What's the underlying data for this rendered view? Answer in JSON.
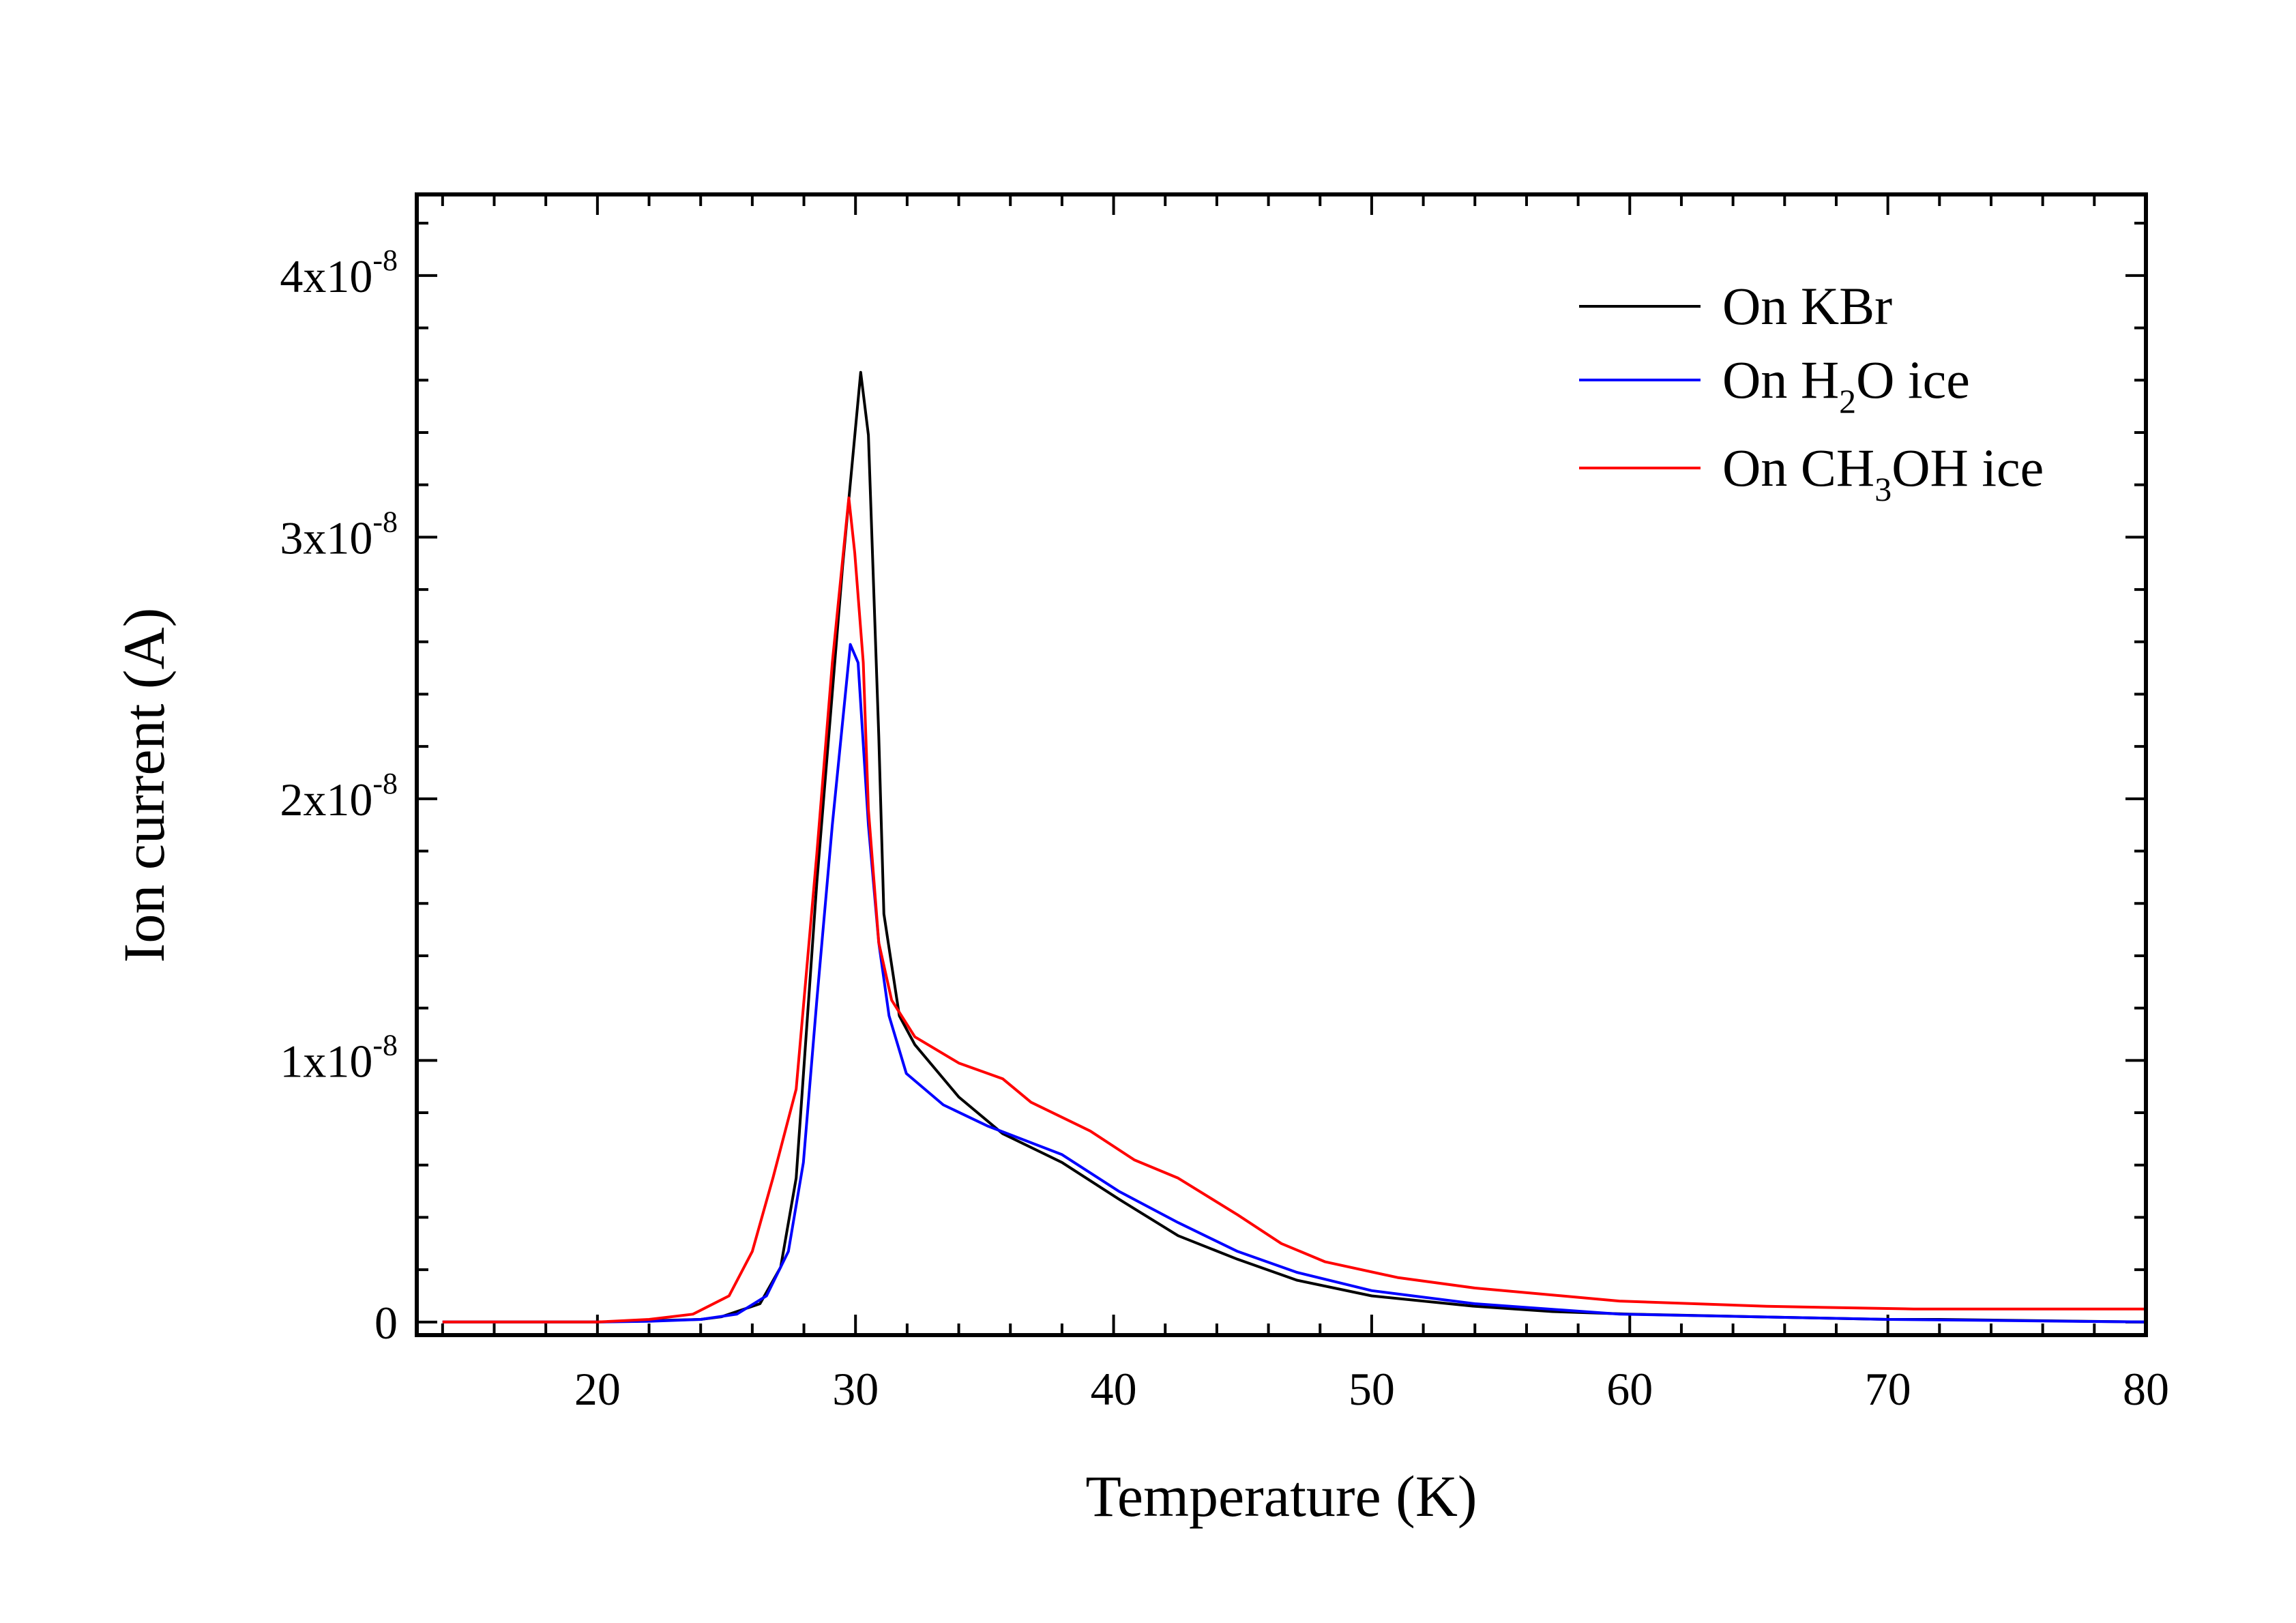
{
  "chart_data": {
    "type": "line",
    "title": "",
    "xlabel": "Temperature (K)",
    "ylabel": "Ion current (A)",
    "xlim": [
      13,
      80
    ],
    "ylim": [
      -5e-10,
      4.31e-08
    ],
    "xticks": [
      20,
      30,
      40,
      50,
      60,
      70,
      80
    ],
    "yticks": [
      {
        "value": 0,
        "label": "0"
      },
      {
        "value": 1e-08,
        "label": "1x10",
        "exp": "-8"
      },
      {
        "value": 2e-08,
        "label": "2x10",
        "exp": "-8"
      },
      {
        "value": 3e-08,
        "label": "3x10",
        "exp": "-8"
      },
      {
        "value": 4e-08,
        "label": "4x10",
        "exp": "-8"
      }
    ],
    "grid": false,
    "legend": "top-right",
    "series": [
      {
        "name": "On KBr",
        "color": "#000000",
        "x": [
          14,
          20,
          22,
          24,
          24.8,
          26.3,
          27.1,
          27.7,
          28.5,
          29.5,
          30.2,
          30.5,
          30.9,
          31.1,
          31.7,
          32.3,
          34,
          35.7,
          38,
          40.2,
          42.5,
          44.8,
          47.1,
          50,
          54,
          57,
          60,
          65,
          70,
          72,
          80
        ],
        "y": [
          0,
          0,
          5e-11,
          1e-10,
          2e-10,
          7e-10,
          2.1e-09,
          5.5e-09,
          1.68e-08,
          2.89e-08,
          3.63e-08,
          3.39e-08,
          2.24e-08,
          1.56e-08,
          1.17e-08,
          1.06e-08,
          8.6e-09,
          7.2e-09,
          6.1e-09,
          4.7e-09,
          3.3e-09,
          2.4e-09,
          1.6e-09,
          1e-09,
          6e-10,
          4e-10,
          3e-10,
          2e-10,
          1e-10,
          1e-10,
          0
        ]
      },
      {
        "name": "On H2O ice",
        "color": "#0000ff",
        "x": [
          14,
          20,
          22,
          24,
          25.4,
          26.55,
          27.4,
          27.98,
          28.5,
          29.1,
          29.8,
          30.1,
          30.5,
          30.9,
          31.3,
          31.97,
          33.4,
          35.1,
          38,
          40.2,
          42.5,
          44.8,
          47.1,
          50,
          54,
          59.6,
          65,
          70,
          80
        ],
        "y": [
          0,
          0,
          3e-11,
          1e-10,
          3e-10,
          1e-09,
          2.7e-09,
          6.1e-09,
          1.23e-08,
          1.9e-08,
          2.59e-08,
          2.52e-08,
          1.9e-08,
          1.45e-08,
          1.17e-08,
          9.5e-09,
          8.3e-09,
          7.5e-09,
          6.4e-09,
          5e-09,
          3.8e-09,
          2.7e-09,
          1.9e-09,
          1.2e-09,
          7e-10,
          3e-10,
          2e-10,
          1e-10,
          0
        ]
      },
      {
        "name": "On CH3OH ice",
        "color": "#ff0000",
        "x": [
          14,
          20,
          22,
          23.7,
          25.1,
          26,
          26.8,
          27.7,
          28.5,
          29.1,
          29.74,
          29.97,
          30.3,
          30.5,
          30.9,
          31.4,
          32.3,
          34,
          35.7,
          36.8,
          39.1,
          40.8,
          42.5,
          44.8,
          46.5,
          48.2,
          51,
          54,
          59.6,
          65.3,
          71,
          80
        ],
        "y": [
          0,
          0,
          1e-10,
          3e-10,
          1e-09,
          2.7e-09,
          5.5e-09,
          8.9e-09,
          1.79e-08,
          2.52e-08,
          3.15e-08,
          2.94e-08,
          2.52e-08,
          1.96e-08,
          1.45e-08,
          1.23e-08,
          1.09e-08,
          9.9e-09,
          9.3e-09,
          8.4e-09,
          7.3e-09,
          6.2e-09,
          5.5e-09,
          4.1e-09,
          3e-09,
          2.3e-09,
          1.7e-09,
          1.3e-09,
          8e-10,
          6e-10,
          5e-10,
          5e-10
        ]
      }
    ]
  }
}
